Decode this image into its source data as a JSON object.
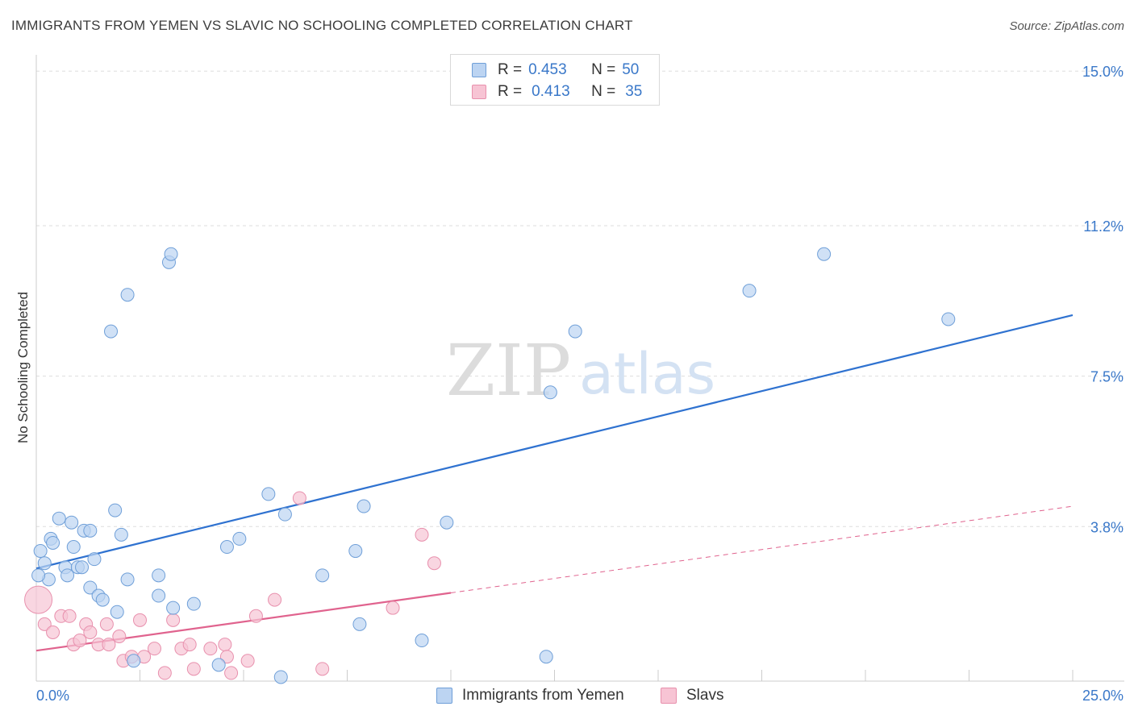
{
  "title": "IMMIGRANTS FROM YEMEN VS SLAVIC NO SCHOOLING COMPLETED CORRELATION CHART",
  "source": "Source: ZipAtlas.com",
  "watermark": {
    "zip": "ZIP",
    "atlas": "atlas"
  },
  "legend_top": [
    {
      "r_label": "R =",
      "r_value": "0.453",
      "n_label": "N =",
      "n_value": "50"
    },
    {
      "r_label": "R =",
      "r_value": "0.413",
      "n_label": "N =",
      "n_value": "35"
    }
  ],
  "colors": {
    "blue_fill": "#bcd4f2",
    "blue_stroke": "#6f9fd8",
    "blue_line": "#2f72d0",
    "pink_fill": "#f7c4d4",
    "pink_stroke": "#e890ad",
    "pink_line": "#e0638e",
    "grid": "#dddddd",
    "axis_label": "#3a78c9"
  },
  "chart_data": {
    "type": "scatter",
    "title": "IMMIGRANTS FROM YEMEN VS SLAVIC NO SCHOOLING COMPLETED CORRELATION CHART",
    "xlabel": "",
    "ylabel": "No Schooling Completed",
    "xlim": [
      0,
      25
    ],
    "ylim": [
      0,
      15.5
    ],
    "x_tick_labels": [
      "0.0%",
      "25.0%"
    ],
    "y_ticks": [
      3.8,
      7.5,
      11.2,
      15.0
    ],
    "y_tick_labels": [
      "3.8%",
      "7.5%",
      "11.2%",
      "15.0%"
    ],
    "grid": true,
    "legend_position": "top-center",
    "series": [
      {
        "name": "Immigrants from Yemen",
        "color": "#bcd4f2",
        "r": 0.453,
        "n": 50,
        "trend": {
          "x": [
            0,
            25
          ],
          "y": [
            2.77,
            9.0
          ],
          "solid_until": 25
        },
        "points": [
          [
            0.1,
            3.2
          ],
          [
            0.2,
            2.9
          ],
          [
            0.3,
            2.5
          ],
          [
            0.35,
            3.5
          ],
          [
            0.4,
            3.4
          ],
          [
            0.55,
            4.0
          ],
          [
            0.7,
            2.8
          ],
          [
            0.75,
            2.6
          ],
          [
            0.85,
            3.9
          ],
          [
            0.9,
            3.3
          ],
          [
            1.0,
            2.8
          ],
          [
            1.1,
            2.8
          ],
          [
            1.15,
            3.7
          ],
          [
            1.3,
            3.7
          ],
          [
            1.4,
            3.0
          ],
          [
            1.3,
            2.3
          ],
          [
            1.5,
            2.1
          ],
          [
            1.6,
            2.0
          ],
          [
            1.8,
            8.6
          ],
          [
            1.9,
            4.2
          ],
          [
            1.95,
            1.7
          ],
          [
            2.05,
            3.6
          ],
          [
            2.2,
            9.5
          ],
          [
            2.2,
            2.5
          ],
          [
            2.35,
            0.5
          ],
          [
            2.95,
            2.6
          ],
          [
            2.95,
            2.1
          ],
          [
            3.2,
            10.3
          ],
          [
            3.25,
            10.5
          ],
          [
            3.3,
            1.8
          ],
          [
            3.8,
            1.9
          ],
          [
            4.4,
            0.4
          ],
          [
            4.6,
            3.3
          ],
          [
            4.9,
            3.5
          ],
          [
            5.6,
            4.6
          ],
          [
            5.9,
            0.1
          ],
          [
            6.0,
            4.1
          ],
          [
            6.9,
            2.6
          ],
          [
            7.7,
            3.2
          ],
          [
            7.8,
            1.4
          ],
          [
            7.9,
            4.3
          ],
          [
            9.3,
            1.0
          ],
          [
            9.9,
            3.9
          ],
          [
            12.3,
            0.6
          ],
          [
            12.4,
            7.1
          ],
          [
            13.0,
            8.6
          ],
          [
            17.2,
            9.6
          ],
          [
            19.0,
            10.5
          ],
          [
            22.0,
            8.9
          ],
          [
            0.05,
            2.6
          ]
        ]
      },
      {
        "name": "Slavs",
        "color": "#f7c4d4",
        "r": 0.413,
        "n": 35,
        "trend": {
          "x": [
            0,
            25
          ],
          "y": [
            0.75,
            4.3
          ],
          "solid_until": 10
        },
        "points": [
          [
            0.05,
            2.0
          ],
          [
            0.2,
            1.4
          ],
          [
            0.4,
            1.2
          ],
          [
            0.6,
            1.6
          ],
          [
            0.8,
            1.6
          ],
          [
            0.9,
            0.9
          ],
          [
            1.05,
            1.0
          ],
          [
            1.2,
            1.4
          ],
          [
            1.3,
            1.2
          ],
          [
            1.5,
            0.9
          ],
          [
            1.7,
            1.4
          ],
          [
            1.75,
            0.9
          ],
          [
            2.0,
            1.1
          ],
          [
            2.1,
            0.5
          ],
          [
            2.3,
            0.6
          ],
          [
            2.5,
            1.5
          ],
          [
            2.6,
            0.6
          ],
          [
            2.85,
            0.8
          ],
          [
            3.1,
            0.2
          ],
          [
            3.3,
            1.5
          ],
          [
            3.5,
            0.8
          ],
          [
            3.7,
            0.9
          ],
          [
            3.8,
            0.3
          ],
          [
            4.2,
            0.8
          ],
          [
            4.55,
            0.9
          ],
          [
            4.6,
            0.6
          ],
          [
            4.7,
            0.2
          ],
          [
            5.1,
            0.5
          ],
          [
            5.3,
            1.6
          ],
          [
            5.75,
            2.0
          ],
          [
            6.35,
            4.5
          ],
          [
            6.9,
            0.3
          ],
          [
            8.6,
            1.8
          ],
          [
            9.3,
            3.6
          ],
          [
            9.6,
            2.9
          ]
        ]
      }
    ]
  },
  "bottom_legend": [
    {
      "label": "Immigrants from Yemen"
    },
    {
      "label": "Slavs"
    }
  ]
}
